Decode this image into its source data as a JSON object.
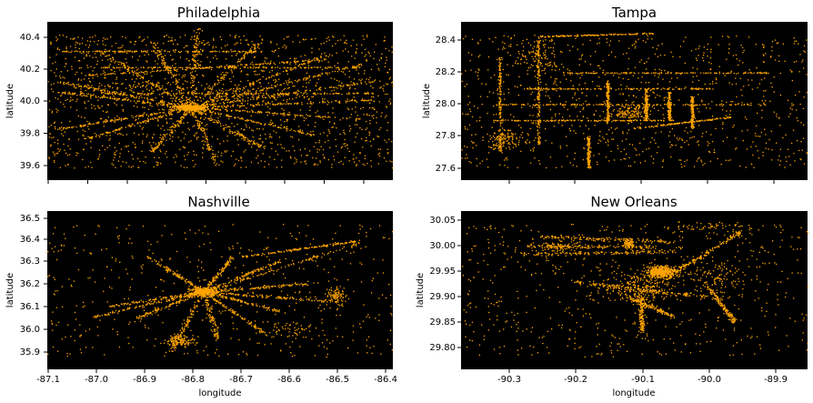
{
  "colors": {
    "background": "#000000",
    "points": "#FFA500"
  },
  "chart_data": [
    {
      "type": "scatter",
      "title": "Philadelphia",
      "xlabel": "",
      "ylabel": "latitude",
      "xlim": [
        -75.38,
        -74.85
      ],
      "ylim": [
        39.5,
        40.48
      ],
      "xticks": [],
      "yticks": [
        "39.6",
        "39.8",
        "40.0",
        "40.2",
        "40.4"
      ],
      "center": [
        -75.16,
        39.952
      ],
      "hubs": [
        [
          -75.16,
          39.952,
          0.012,
          0.008,
          450
        ],
        [
          -75.07,
          40.03,
          0.05,
          0.03,
          120
        ],
        [
          -75.28,
          40.06,
          0.05,
          0.04,
          90
        ]
      ],
      "spokes": [
        [
          -75.37,
          40.05
        ],
        [
          -75.36,
          40.11
        ],
        [
          -75.36,
          39.82
        ],
        [
          -75.3,
          40.3
        ],
        [
          -75.22,
          40.36
        ],
        [
          -75.15,
          40.44
        ],
        [
          -75.05,
          40.38
        ],
        [
          -74.95,
          40.28
        ],
        [
          -74.9,
          40.22
        ],
        [
          -74.87,
          40.12
        ],
        [
          -74.88,
          40.0
        ],
        [
          -74.9,
          39.88
        ],
        [
          -74.97,
          39.78
        ],
        [
          -75.05,
          39.7
        ],
        [
          -75.12,
          39.6
        ],
        [
          -75.22,
          39.68
        ],
        [
          -75.32,
          39.76
        ]
      ],
      "corridors": [
        [
          -75.35,
          40.04,
          -74.88,
          40.04
        ],
        [
          -75.3,
          40.2,
          -74.9,
          40.2
        ],
        [
          -75.32,
          40.15,
          -74.95,
          40.25
        ],
        [
          -75.36,
          40.3,
          -75.05,
          40.3
        ]
      ],
      "scatter_n": 1500
    },
    {
      "type": "scatter",
      "title": "Tampa",
      "xlabel": "",
      "ylabel": "latitude",
      "xlim": [
        -82.9,
        -82.0
      ],
      "ylim": [
        27.52,
        28.52
      ],
      "xticks": [],
      "yticks": [
        "27.6",
        "27.8",
        "28.0",
        "28.2",
        "28.4"
      ],
      "center": [
        -82.46,
        27.95
      ],
      "hubs": [
        [
          -82.46,
          27.95,
          0.03,
          0.03,
          150
        ],
        [
          -82.79,
          27.78,
          0.03,
          0.03,
          120
        ],
        [
          -82.7,
          28.3,
          0.03,
          0.06,
          100
        ]
      ],
      "spokes": [],
      "corridors": [
        [
          -82.82,
          28.0,
          -82.1,
          28.0
        ],
        [
          -82.82,
          27.9,
          -82.35,
          27.9
        ],
        [
          -82.74,
          28.1,
          -82.25,
          28.1
        ],
        [
          -82.64,
          28.2,
          -82.1,
          28.2
        ],
        [
          -82.7,
          28.43,
          -82.4,
          28.45
        ],
        [
          -82.45,
          27.85,
          -82.2,
          27.92
        ],
        [
          -82.8,
          27.7,
          -82.8,
          28.3
        ],
        [
          -82.7,
          27.75,
          -82.7,
          28.4
        ],
        [
          -82.52,
          27.88,
          -82.52,
          28.15
        ],
        [
          -82.42,
          27.9,
          -82.42,
          28.1
        ],
        [
          -82.36,
          27.9,
          -82.36,
          28.08
        ],
        [
          -82.3,
          27.85,
          -82.3,
          28.05
        ],
        [
          -82.57,
          27.6,
          -82.57,
          27.8
        ]
      ],
      "scatter_n": 900
    },
    {
      "type": "scatter",
      "title": "Nashville",
      "xlabel": "longitude",
      "ylabel": "latitude",
      "xlim": [
        -87.11,
        -86.38
      ],
      "ylim": [
        35.82,
        36.52
      ],
      "xticks": [
        "-87.1",
        "-87.0",
        "-86.9",
        "-86.8",
        "-86.7",
        "-86.6",
        "-86.5",
        "-86.4"
      ],
      "yticks": [
        "35.9",
        "36.0",
        "36.1",
        "36.2",
        "36.3",
        "36.4",
        "36.5"
      ],
      "center": [
        -86.78,
        36.165
      ],
      "hubs": [
        [
          -86.78,
          36.165,
          0.015,
          0.01,
          300
        ],
        [
          -86.83,
          35.95,
          0.015,
          0.012,
          120
        ],
        [
          -86.5,
          36.15,
          0.01,
          0.02,
          80
        ],
        [
          -86.6,
          36.0,
          0.03,
          0.02,
          50
        ]
      ],
      "spokes": [
        [
          -87.02,
          36.05
        ],
        [
          -86.98,
          36.1
        ],
        [
          -86.9,
          36.32
        ],
        [
          -86.72,
          36.32
        ],
        [
          -86.62,
          36.3
        ],
        [
          -86.45,
          36.38
        ],
        [
          -86.56,
          36.2
        ],
        [
          -86.5,
          36.12
        ],
        [
          -86.62,
          36.08
        ],
        [
          -86.65,
          35.98
        ],
        [
          -86.75,
          35.95
        ],
        [
          -86.85,
          35.9
        ],
        [
          -86.92,
          36.05
        ]
      ],
      "corridors": [
        [
          -86.7,
          36.32,
          -86.45,
          36.39
        ]
      ],
      "scatter_n": 500
    },
    {
      "type": "scatter",
      "title": "New Orleans",
      "xlabel": "longitude",
      "ylabel": "latitude",
      "xlim": [
        -90.37,
        -89.85
      ],
      "ylim": [
        29.755,
        30.07
      ],
      "xticks": [
        "-90.3",
        "-90.2",
        "-90.1",
        "-90.0",
        "-89.9"
      ],
      "yticks": [
        "29.80",
        "29.85",
        "29.90",
        "29.95",
        "30.00",
        "30.05"
      ],
      "center": [
        -90.07,
        29.95
      ],
      "hubs": [
        [
          -90.07,
          29.95,
          0.012,
          0.006,
          500
        ],
        [
          -90.12,
          30.005,
          0.004,
          0.004,
          80
        ],
        [
          -90.22,
          30.0,
          0.015,
          0.005,
          60
        ],
        [
          -90.1,
          29.92,
          0.03,
          0.015,
          250
        ],
        [
          -89.99,
          29.94,
          0.02,
          0.015,
          100
        ],
        [
          -90.0,
          30.04,
          0.04,
          0.005,
          60
        ]
      ],
      "spokes": [],
      "corridors": [
        [
          -90.27,
          30.0,
          -90.08,
          30.0
        ],
        [
          -90.28,
          29.985,
          -90.05,
          29.99
        ],
        [
          -90.25,
          30.02,
          -90.05,
          30.01
        ],
        [
          -90.2,
          29.93,
          -90.0,
          29.9
        ],
        [
          -90.12,
          29.9,
          -90.05,
          29.86
        ],
        [
          -90.05,
          29.95,
          -89.95,
          30.03
        ],
        [
          -90.1,
          29.9,
          -90.1,
          29.83
        ],
        [
          -90.0,
          29.92,
          -89.96,
          29.85
        ]
      ],
      "scatter_n": 600
    }
  ]
}
